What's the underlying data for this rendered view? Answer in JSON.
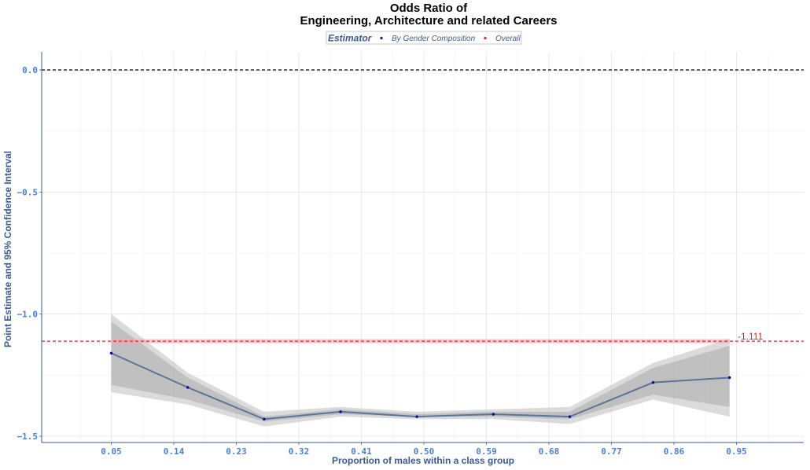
{
  "chart_data": {
    "type": "line",
    "title": [
      "Odds Ratio of",
      "Engineering, Architecture and related Careers"
    ],
    "xlabel": "Proportion of males within a class group",
    "ylabel": "Point Estimate and 95% Confidence Interval",
    "xlim": [
      0.0,
      1.0
    ],
    "ylim": [
      -1.52,
      0.07
    ],
    "x_ticks": [
      0.05,
      0.14,
      0.23,
      0.32,
      0.41,
      0.5,
      0.59,
      0.68,
      0.77,
      0.86,
      0.95
    ],
    "x_tick_labels": [
      "0.05",
      "0.14",
      "0.23",
      "0.32",
      "0.41",
      "0.50",
      "0.59",
      "0.68",
      "0.77",
      "0.86",
      "0.95"
    ],
    "y_ticks": [
      0.0,
      -0.5,
      -1.0,
      -1.5
    ],
    "y_tick_labels": [
      "0.0",
      "−0.5",
      "−1.0",
      "−1.5"
    ],
    "grid": true,
    "legend": {
      "title": "Estimator",
      "position": "top",
      "entries": [
        {
          "label": "By Gender Composition",
          "color": "#1010a0"
        },
        {
          "label": "Overall",
          "color": "#e8202a"
        }
      ]
    },
    "series": [
      {
        "name": "By Gender Composition",
        "color": "#5a7599",
        "x": [
          0.05,
          0.16,
          0.27,
          0.38,
          0.49,
          0.6,
          0.71,
          0.83,
          0.94
        ],
        "y": [
          -1.16,
          -1.3,
          -1.43,
          -1.4,
          -1.42,
          -1.41,
          -1.42,
          -1.28,
          -1.26
        ],
        "ci_inner_lower": [
          -1.29,
          -1.35,
          -1.44,
          -1.41,
          -1.42,
          -1.42,
          -1.43,
          -1.33,
          -1.38
        ],
        "ci_inner_upper": [
          -1.03,
          -1.26,
          -1.42,
          -1.39,
          -1.41,
          -1.4,
          -1.4,
          -1.22,
          -1.13
        ],
        "ci_outer_lower": [
          -1.32,
          -1.37,
          -1.46,
          -1.42,
          -1.43,
          -1.43,
          -1.45,
          -1.35,
          -1.42
        ],
        "ci_outer_upper": [
          -1.0,
          -1.24,
          -1.4,
          -1.38,
          -1.4,
          -1.39,
          -1.38,
          -1.2,
          -1.1
        ]
      }
    ],
    "reference_lines": [
      {
        "y": 0.0,
        "style": "dashed",
        "color": "#000000"
      },
      {
        "y": -1.111,
        "style": "dashed",
        "color": "#e8202a",
        "band": [
          -1.119,
          -1.102
        ],
        "label": "-1.111"
      }
    ]
  }
}
